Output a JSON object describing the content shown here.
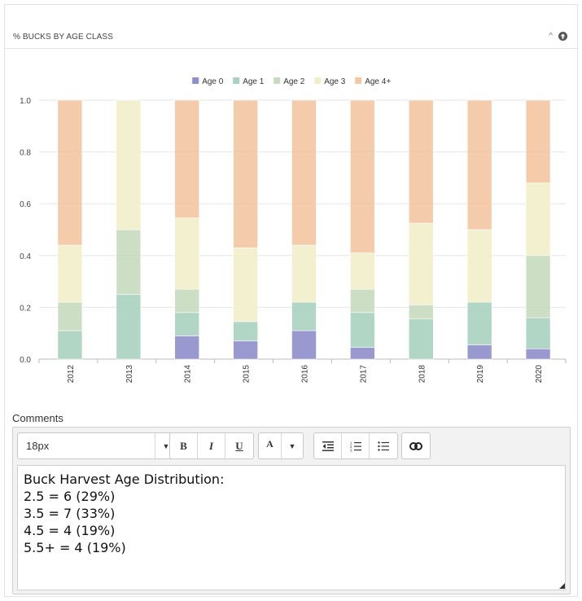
{
  "panel": {
    "title": "% BUCKS BY AGE CLASS",
    "caret": "^"
  },
  "chart_data": {
    "type": "bar",
    "stacked": true,
    "categories": [
      "2012",
      "2013",
      "2014",
      "2015",
      "2016",
      "2017",
      "2018",
      "2019",
      "2020"
    ],
    "series": [
      {
        "name": "Age 0",
        "color": "#8f8fcc",
        "values": [
          0.0,
          0.0,
          0.09,
          0.07,
          0.11,
          0.045,
          0.0,
          0.055,
          0.04
        ]
      },
      {
        "name": "Age 1",
        "color": "#a9d2c0",
        "values": [
          0.11,
          0.25,
          0.09,
          0.075,
          0.11,
          0.135,
          0.155,
          0.165,
          0.12
        ]
      },
      {
        "name": "Age 2",
        "color": "#c7dcbf",
        "values": [
          0.11,
          0.25,
          0.09,
          0.0,
          0.0,
          0.09,
          0.055,
          0.0,
          0.24
        ]
      },
      {
        "name": "Age 3",
        "color": "#f1efc9",
        "values": [
          0.22,
          0.5,
          0.275,
          0.285,
          0.22,
          0.14,
          0.315,
          0.28,
          0.28
        ]
      },
      {
        "name": "Age 4+",
        "color": "#f3c7a3",
        "values": [
          0.56,
          0.0,
          0.455,
          0.57,
          0.56,
          0.59,
          0.475,
          0.5,
          0.32
        ]
      }
    ],
    "ylim": [
      0,
      1.0
    ],
    "yticks": [
      "0.0",
      "0.2",
      "0.4",
      "0.6",
      "0.8",
      "1.0"
    ],
    "grid": true,
    "legend": "top-center",
    "xlabel": "",
    "ylabel": ""
  },
  "comments": {
    "label": "Comments",
    "toolbar": {
      "font_size": "18px",
      "dropdown_arrow": "▼",
      "bold": "B",
      "italic": "I",
      "underline": "U",
      "font_color": "A",
      "color_arrow": "▼"
    },
    "lines": [
      "Buck Harvest Age Distribution:",
      "2.5 = 6 (29%)",
      "3.5 = 7 (33%)",
      "4.5 = 4 (19%)",
      "5.5+ = 4 (19%)"
    ]
  },
  "icons": {
    "collapse": "up-arrow-circle-icon",
    "outdent": "outdent-icon",
    "ordered_list": "ordered-list-icon",
    "unordered_list": "unordered-list-icon",
    "link": "link-icon"
  }
}
